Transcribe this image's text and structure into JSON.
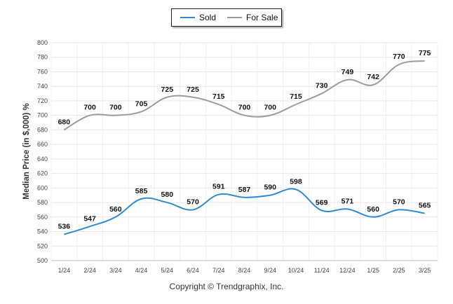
{
  "chart_data": {
    "type": "line",
    "categories": [
      "1/24",
      "2/24",
      "3/24",
      "4/24",
      "5/24",
      "6/24",
      "7/24",
      "8/24",
      "9/24",
      "10/24",
      "11/24",
      "12/24",
      "1/25",
      "2/25",
      "3/25"
    ],
    "series": [
      {
        "name": "Sold",
        "color": "#2e8ad1",
        "values": [
          536,
          547,
          560,
          585,
          580,
          570,
          591,
          587,
          590,
          598,
          569,
          571,
          560,
          570,
          565
        ]
      },
      {
        "name": "For Sale",
        "color": "#9c9c9c",
        "values": [
          680,
          700,
          700,
          705,
          725,
          725,
          715,
          700,
          700,
          715,
          730,
          749,
          742,
          770,
          775
        ]
      }
    ],
    "ylabel": "Median Price (in $,000) %",
    "ylim": [
      500,
      800
    ],
    "yticks": [
      500,
      520,
      540,
      560,
      580,
      600,
      620,
      640,
      660,
      680,
      700,
      720,
      740,
      760,
      780,
      800
    ],
    "grid": true,
    "legend_position": "top-center"
  },
  "footer": {
    "copyright": "Copyright © Trendgraphix, Inc."
  }
}
